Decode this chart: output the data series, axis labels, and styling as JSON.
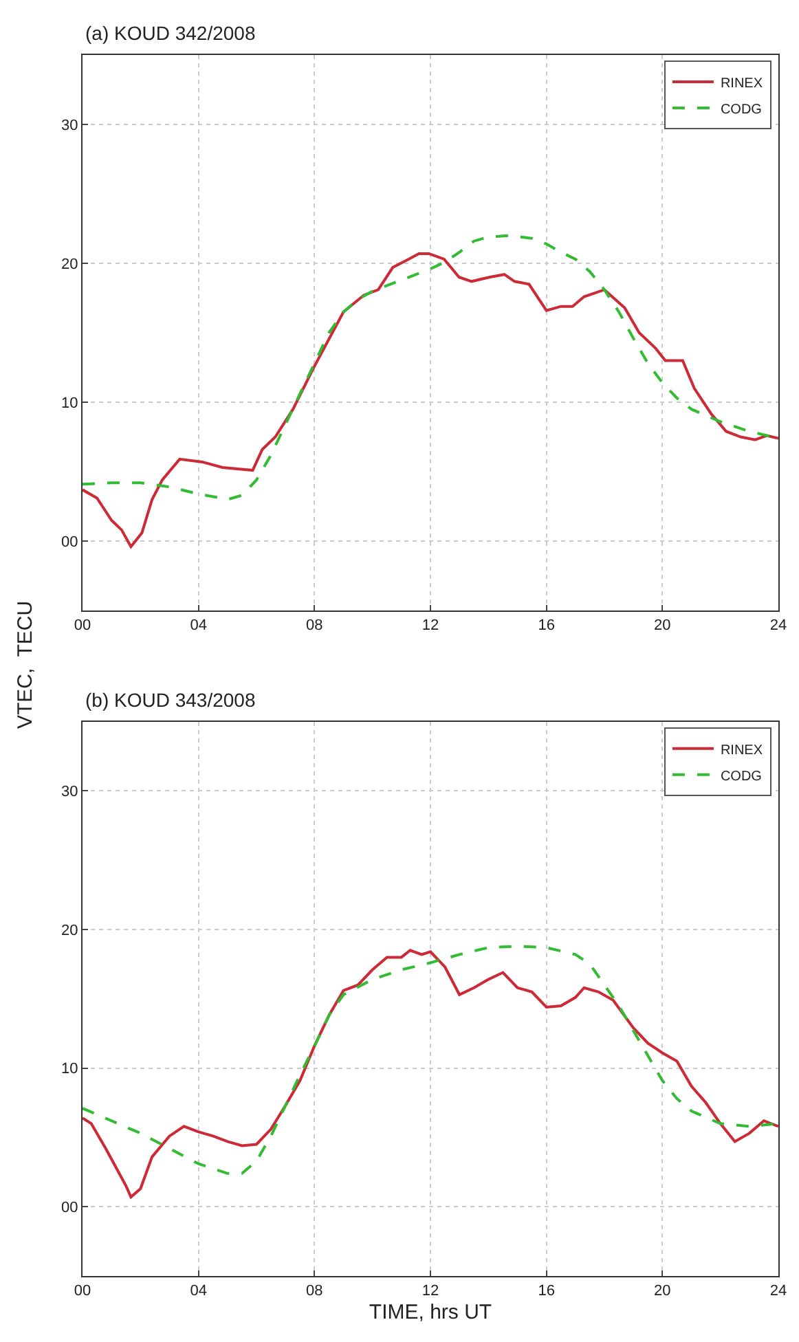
{
  "chart_data": [
    {
      "type": "line",
      "title": "(a) KOUD 342/2008",
      "ylabel": "VTEC,  TECU",
      "legend": "top right",
      "grid": true,
      "xlim": [
        0,
        24
      ],
      "xticks": [
        {
          "value": 0,
          "label": "00"
        },
        {
          "value": 4,
          "label": "04"
        },
        {
          "value": 8,
          "label": "08"
        },
        12,
        16,
        20,
        24
      ],
      "ylim": [
        -5,
        35
      ],
      "yticks": [
        {
          "value": 0,
          "label": "00"
        },
        10,
        20,
        30
      ],
      "series": [
        {
          "name": "RINEX",
          "color": "#cc2a36",
          "line_style": "solid",
          "x": [
            0,
            0.5,
            1.0,
            1.35,
            1.67,
            2.05,
            2.4,
            2.75,
            3.35,
            4.13,
            4.83,
            5.87,
            6.2,
            6.65,
            7.26,
            7.95,
            9.0,
            9.7,
            10.2,
            10.7,
            11.25,
            11.6,
            11.95,
            12.47,
            12.99,
            13.42,
            14.03,
            14.55,
            14.9,
            15.4,
            16.0,
            16.5,
            16.9,
            17.3,
            18.0,
            18.7,
            19.2,
            19.76,
            20.1,
            20.7,
            21.1,
            21.67,
            22.2,
            22.7,
            23.2,
            23.6,
            24
          ],
          "values": [
            3.7,
            3.1,
            1.5,
            0.8,
            -0.4,
            0.6,
            3.0,
            4.4,
            5.9,
            5.7,
            5.3,
            5.1,
            6.6,
            7.5,
            9.5,
            12.4,
            16.5,
            17.7,
            18.1,
            19.7,
            20.3,
            20.7,
            20.7,
            20.3,
            19.0,
            18.7,
            19.0,
            19.2,
            18.7,
            18.5,
            16.6,
            16.9,
            16.9,
            17.6,
            18.1,
            16.8,
            15.0,
            13.9,
            13.0,
            13.0,
            11.0,
            9.2,
            7.9,
            7.5,
            7.3,
            7.6,
            7.4
          ]
        },
        {
          "name": "CODG",
          "color": "#33bb33",
          "line_style": "dashed",
          "x": [
            0,
            1,
            2,
            3,
            4,
            5,
            5.5,
            6.0,
            6.5,
            7,
            7.5,
            8,
            8.5,
            9,
            9.5,
            10,
            11,
            12,
            12.5,
            13,
            13.5,
            14,
            14.7,
            15.5,
            16,
            16.5,
            17,
            17.5,
            18,
            18.5,
            19,
            19.5,
            20,
            20.5,
            21,
            22,
            23,
            24
          ],
          "values": [
            4.1,
            4.2,
            4.2,
            3.9,
            3.4,
            3.0,
            3.3,
            4.4,
            6.2,
            8.4,
            10.6,
            12.8,
            15.0,
            16.5,
            17.4,
            18.0,
            18.8,
            19.6,
            20.1,
            20.8,
            21.6,
            21.9,
            22.0,
            21.8,
            21.4,
            20.8,
            20.3,
            19.4,
            18.1,
            16.5,
            14.6,
            12.8,
            11.4,
            10.3,
            9.5,
            8.6,
            7.9,
            7.4
          ]
        }
      ]
    },
    {
      "type": "line",
      "title": "(b) KOUD 343/2008",
      "xlabel": "TIME, hrs UT",
      "legend": "top right",
      "grid": true,
      "xlim": [
        0,
        24
      ],
      "xticks": [
        {
          "value": 0,
          "label": "00"
        },
        {
          "value": 4,
          "label": "04"
        },
        {
          "value": 8,
          "label": "08"
        },
        12,
        16,
        20,
        24
      ],
      "ylim": [
        -5,
        35
      ],
      "yticks": [
        {
          "value": 0,
          "label": "00"
        },
        10,
        20,
        30
      ],
      "series": [
        {
          "name": "RINEX",
          "color": "#cc2a36",
          "line_style": "solid",
          "x": [
            0,
            0.3,
            0.8,
            1.5,
            1.67,
            2.0,
            2.4,
            3.0,
            3.5,
            4.0,
            4.5,
            5.0,
            5.5,
            6.0,
            6.5,
            7.0,
            7.5,
            8.0,
            8.5,
            9.0,
            9.5,
            10.0,
            10.5,
            11.0,
            11.3,
            11.7,
            12.0,
            12.5,
            13.0,
            13.5,
            14.0,
            14.5,
            15.0,
            15.5,
            16.0,
            16.5,
            17.0,
            17.3,
            17.8,
            18.3,
            19.0,
            19.5,
            20.0,
            20.5,
            21.0,
            21.5,
            22.0,
            22.5,
            23.0,
            23.5,
            24
          ],
          "values": [
            6.4,
            6.0,
            4.2,
            1.5,
            0.7,
            1.3,
            3.6,
            5.1,
            5.8,
            5.4,
            5.1,
            4.7,
            4.4,
            4.5,
            5.6,
            7.3,
            9.1,
            11.6,
            13.8,
            15.6,
            16.0,
            17.1,
            18.0,
            18.0,
            18.5,
            18.2,
            18.4,
            17.3,
            15.3,
            15.8,
            16.4,
            16.9,
            15.8,
            15.5,
            14.4,
            14.5,
            15.1,
            15.8,
            15.5,
            14.9,
            12.9,
            11.8,
            11.1,
            10.5,
            8.7,
            7.5,
            6.0,
            4.7,
            5.3,
            6.2,
            5.8
          ]
        },
        {
          "name": "CODG",
          "color": "#33bb33",
          "line_style": "dashed",
          "x": [
            0,
            1,
            2,
            3,
            4,
            5,
            5.5,
            6,
            6.5,
            7,
            7.5,
            8,
            8.5,
            9,
            10,
            11,
            12,
            13,
            14,
            15,
            16,
            17,
            17.5,
            18,
            18.5,
            19,
            19.5,
            20,
            20.5,
            21,
            22,
            23,
            24
          ],
          "values": [
            7.1,
            6.2,
            5.3,
            4.2,
            3.1,
            2.4,
            2.4,
            3.3,
            5.1,
            7.3,
            9.5,
            11.6,
            13.8,
            15.3,
            16.4,
            17.1,
            17.6,
            18.2,
            18.7,
            18.8,
            18.7,
            18.2,
            17.5,
            16.0,
            14.5,
            12.7,
            10.9,
            9.1,
            7.8,
            6.9,
            6.0,
            5.8,
            6.0
          ]
        }
      ]
    }
  ]
}
